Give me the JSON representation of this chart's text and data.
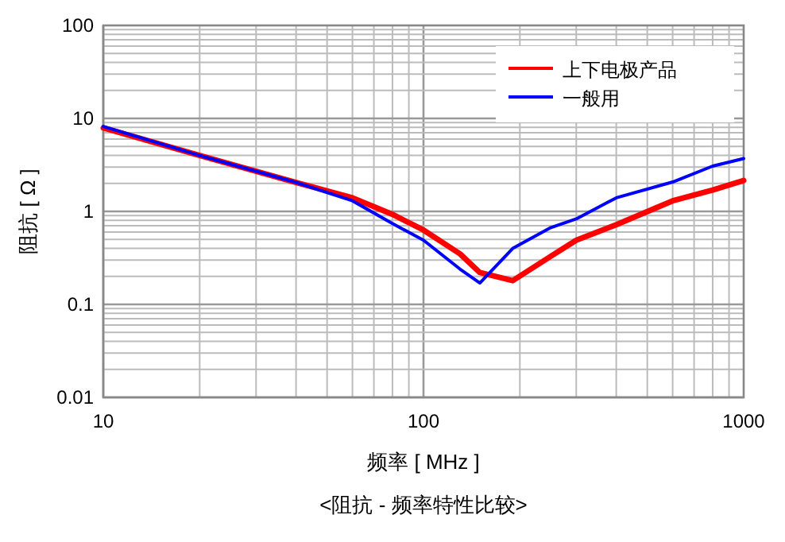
{
  "chart_data": {
    "type": "line",
    "title": "<阻抗 - 频率特性比较>",
    "xlabel": "频率 [ MHz ]",
    "ylabel": "阻抗 [ Ω ]",
    "log": "xy",
    "grid": true,
    "legend": "top right",
    "marker": "none",
    "line_style": "solid",
    "xlim": [
      10,
      1000
    ],
    "xticks": [
      10,
      100,
      1000
    ],
    "ylim": [
      0.01,
      100
    ],
    "yticks": [
      0.01,
      0.1,
      1,
      10,
      100
    ],
    "series": [
      {
        "name": "上下电极产品",
        "color": "#ff0000",
        "x": [
          10,
          20,
          40,
          60,
          80,
          100,
          130,
          150,
          190,
          250,
          300,
          400,
          600,
          800,
          1000
        ],
        "values": [
          7.9,
          4.0,
          2.05,
          1.4,
          0.93,
          0.63,
          0.35,
          0.22,
          0.18,
          0.33,
          0.49,
          0.72,
          1.3,
          1.7,
          2.15
        ]
      },
      {
        "name": "一般用",
        "color": "#0000ff",
        "x": [
          10,
          20,
          40,
          60,
          80,
          100,
          130,
          150,
          190,
          250,
          300,
          400,
          600,
          800,
          1000
        ],
        "values": [
          8.2,
          4.0,
          2.05,
          1.3,
          0.74,
          0.49,
          0.24,
          0.17,
          0.4,
          0.67,
          0.83,
          1.4,
          2.07,
          3.07,
          3.7
        ]
      }
    ]
  }
}
